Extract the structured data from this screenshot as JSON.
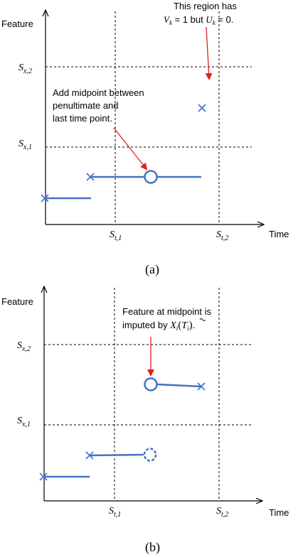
{
  "panel_a": {
    "y_axis_label": "Feature",
    "x_axis_label": "Time",
    "y_ticks": [
      {
        "base": "S",
        "sub": "x,2"
      },
      {
        "base": "S",
        "sub": "x,1"
      }
    ],
    "x_ticks": [
      {
        "base": "S",
        "sub": "t,1"
      },
      {
        "base": "S",
        "sub": "t,2"
      }
    ],
    "annotation_top": {
      "line1": "This region has",
      "line2_parts": [
        "V",
        "k",
        " = 1 but ",
        "U",
        "k",
        " = 0."
      ]
    },
    "annotation_mid": {
      "line1": "Add midpoint between",
      "line2": "penultimate and",
      "line3": "last time point."
    },
    "caption": "(a)"
  },
  "panel_b": {
    "y_axis_label": "Feature",
    "x_axis_label": "Time",
    "y_ticks": [
      {
        "base": "S",
        "sub": "x,2"
      },
      {
        "base": "S",
        "sub": "x,1"
      }
    ],
    "x_ticks": [
      {
        "base": "S",
        "sub": "t,1"
      },
      {
        "base": "S",
        "sub": "t,2"
      }
    ],
    "annotation": {
      "line1": "Feature at midpoint is",
      "line2_prefix": "imputed by ",
      "line2_math": [
        "X",
        "i",
        "(",
        "T",
        "i",
        ")",
        "."
      ]
    },
    "caption": "(b)"
  },
  "colors": {
    "series": "#4472c4",
    "arrow": "#e02020",
    "axis": "#000000"
  }
}
